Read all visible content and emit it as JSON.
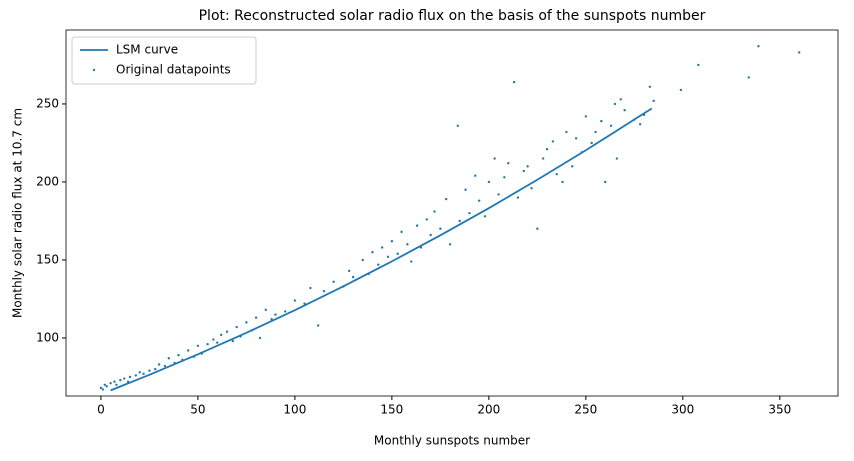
{
  "chart_data": {
    "type": "scatter",
    "title": "Plot: Reconstructed solar radio flux on the basis of the sunspots number",
    "x_label": "Monthly sunspots number",
    "y_label": "Monthly solar radio flux at 10.7 cm",
    "xlim": [
      -18,
      380
    ],
    "ylim": [
      62.8,
      297.4
    ],
    "xticks": [
      0,
      50,
      100,
      150,
      200,
      250,
      300,
      350
    ],
    "yticks": [
      100,
      150,
      200,
      250
    ],
    "grid": false,
    "legend": "upper left",
    "series": [
      {
        "name": "LSM curve",
        "type": "line",
        "color": "#1f77b4",
        "x": [
          5,
          25,
          50,
          75,
          100,
          125,
          150,
          175,
          200,
          225,
          250,
          284
        ],
        "values": [
          66.4,
          76.4,
          89.5,
          103.3,
          117.8,
          133.1,
          149.1,
          165.8,
          183.2,
          201.4,
          220.3,
          247.1
        ]
      },
      {
        "name": "Original datapoints",
        "type": "scatter",
        "color": "#1f77b4",
        "x": [
          0,
          1,
          2,
          3,
          5,
          7,
          8,
          10,
          12,
          14,
          15,
          18,
          20,
          22,
          25,
          28,
          30,
          33,
          35,
          38,
          40,
          42,
          45,
          48,
          50,
          52,
          55,
          58,
          60,
          62,
          65,
          68,
          70,
          72,
          75,
          78,
          80,
          82,
          85,
          88,
          90,
          95,
          100,
          105,
          108,
          112,
          115,
          120,
          125,
          128,
          130,
          135,
          138,
          140,
          143,
          145,
          148,
          150,
          153,
          155,
          158,
          160,
          163,
          165,
          168,
          170,
          172,
          175,
          178,
          180,
          184,
          185,
          188,
          190,
          193,
          195,
          198,
          200,
          203,
          205,
          208,
          210,
          213,
          215,
          218,
          220,
          222,
          225,
          228,
          230,
          233,
          235,
          238,
          240,
          243,
          245,
          248,
          250,
          253,
          255,
          258,
          260,
          263,
          265,
          266,
          268,
          270,
          275,
          278,
          280,
          283,
          285,
          299,
          308,
          334,
          339,
          360
        ],
        "values": [
          68,
          67,
          70,
          69,
          71,
          72,
          70,
          73,
          74,
          72,
          75,
          76,
          78,
          77,
          79,
          80,
          83,
          82,
          87,
          84,
          89,
          86,
          92,
          88,
          95,
          90,
          96,
          99,
          97,
          102,
          104,
          98,
          107,
          101,
          110,
          105,
          113,
          100,
          118,
          112,
          115,
          117,
          124,
          122,
          132,
          108,
          130,
          136,
          133,
          143,
          139,
          150,
          141,
          155,
          147,
          158,
          152,
          162,
          154,
          168,
          160,
          149,
          172,
          158,
          176,
          166,
          181,
          170,
          189,
          160,
          236,
          175,
          195,
          180,
          204,
          188,
          178,
          200,
          215,
          192,
          203,
          212,
          264,
          190,
          207,
          210,
          196,
          170,
          215,
          221,
          226,
          205,
          200,
          232,
          210,
          228,
          219,
          242,
          225,
          232,
          239,
          200,
          236,
          250,
          215,
          253,
          246,
          240,
          237,
          243,
          261,
          252,
          259,
          275,
          267,
          287,
          283
        ]
      }
    ]
  }
}
